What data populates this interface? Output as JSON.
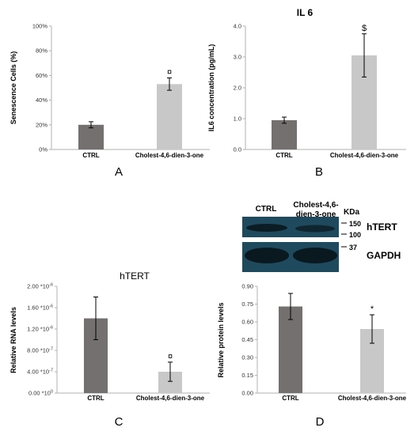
{
  "colors": {
    "dark_bar": "#757070",
    "light_bar": "#c8c8c8",
    "axis": "#b0b0b0",
    "blot_bg": "#1f4a5e",
    "band": "#0b1c24"
  },
  "chart_data": [
    {
      "id": "A",
      "type": "bar",
      "panel_label": "A",
      "title": "",
      "ylabel": "Senescence Cells (%)",
      "xlabel": "",
      "categories": [
        "CTRL",
        "Cholest-4,6-dien-3-one"
      ],
      "values": [
        20,
        53
      ],
      "errors": [
        2.5,
        5
      ],
      "significance": [
        "",
        "¤"
      ],
      "ylim": [
        0,
        100
      ],
      "yticks": [
        0,
        20,
        40,
        60,
        80,
        100
      ],
      "ytick_labels": [
        "0%",
        "20%",
        "40%",
        "60%",
        "80%",
        "100%"
      ],
      "bar_colors": [
        "dark",
        "light"
      ]
    },
    {
      "id": "B",
      "type": "bar",
      "panel_label": "B",
      "title": "IL 6",
      "ylabel": "IL6 concentration (pg/mL)",
      "xlabel": "",
      "categories": [
        "CTRL",
        "Cholest-4,6-dien-3-one"
      ],
      "values": [
        0.95,
        3.05
      ],
      "errors": [
        0.1,
        0.7
      ],
      "significance": [
        "",
        "$"
      ],
      "ylim": [
        0,
        4
      ],
      "yticks": [
        0,
        1,
        2,
        3,
        4
      ],
      "ytick_labels": [
        "0.0",
        "1.0",
        "2.0",
        "3.0",
        "4.0"
      ],
      "bar_colors": [
        "dark",
        "light"
      ]
    },
    {
      "id": "C",
      "type": "bar",
      "panel_label": "C",
      "title": "hTERT",
      "ylabel": "Relative RNA levels",
      "xlabel": "",
      "categories": [
        "CTRL",
        "Cholest-4,6-dien-3-one"
      ],
      "values": [
        1.4e-06,
        4e-07
      ],
      "errors": [
        4e-07,
        1.8e-07
      ],
      "significance": [
        "",
        "¤"
      ],
      "ylim": [
        0,
        2e-06
      ],
      "yticks": [
        0,
        4e-07,
        8e-07,
        1.2e-06,
        1.6e-06,
        2e-06
      ],
      "ytick_labels": [
        {
          "m": "0.00 *10",
          "e": "0"
        },
        {
          "m": "4.00 *10",
          "e": "-7"
        },
        {
          "m": "8.00 *10",
          "e": "-7"
        },
        {
          "m": "1.20 *10",
          "e": "-6"
        },
        {
          "m": "1.60 *10",
          "e": "-6"
        },
        {
          "m": "2.00 *10",
          "e": "-6"
        }
      ],
      "bar_colors": [
        "dark",
        "light"
      ]
    },
    {
      "id": "D",
      "type": "bar",
      "panel_label": "D",
      "title": "",
      "ylabel": "Relative protein levels",
      "xlabel": "",
      "categories": [
        "CTRL",
        "Cholest-4,6-dien-3-one"
      ],
      "values": [
        0.73,
        0.54
      ],
      "errors": [
        0.11,
        0.12
      ],
      "significance": [
        "",
        "*"
      ],
      "ylim": [
        0,
        0.9
      ],
      "yticks": [
        0,
        0.15,
        0.3,
        0.45,
        0.6,
        0.75,
        0.9
      ],
      "ytick_labels": [
        "0.00",
        "0.15",
        "0.30",
        "0.45",
        "0.60",
        "0.75",
        "0.90"
      ],
      "bar_colors": [
        "dark",
        "light"
      ]
    }
  ],
  "blot": {
    "lanes": [
      "CTRL",
      "Cholest-4,6-",
      "dien-3-one"
    ],
    "unit": "KDa",
    "markers": [
      "150",
      "100",
      "37"
    ],
    "proteins": [
      "hTERT",
      "GAPDH"
    ]
  }
}
